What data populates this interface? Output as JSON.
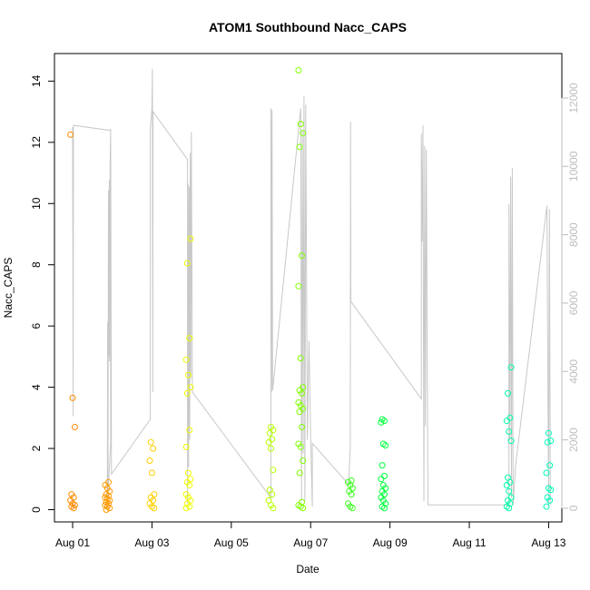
{
  "chart_data": {
    "type": "scatter",
    "title": "ATOM1 Southbound Nacc_CAPS",
    "xlabel": "Date",
    "ylabel": "Nacc_CAPS",
    "x_ticks": [
      "Aug 01",
      "Aug 03",
      "Aug 05",
      "Aug 07",
      "Aug 09",
      "Aug 11",
      "Aug 13"
    ],
    "xlim": [
      "2016-07-31T13:00",
      "2016-08-13T08:00"
    ],
    "ylim": [
      -0.4,
      14.9
    ],
    "y_ticks": [
      0,
      2,
      4,
      6,
      8,
      10,
      12,
      14
    ],
    "y2lim": [
      -400,
      13300
    ],
    "y2_ticks": [
      0,
      2000,
      4000,
      6000,
      8000,
      10000,
      12000
    ],
    "grid": false,
    "legend": "none",
    "colors": {
      "line": "#c8c8c8",
      "right_axis": "#bdbdbd",
      "ramp": [
        "#FF8C00",
        "#FFA500",
        "#FFFF00",
        "#ADFF2F",
        "#00FF00",
        "#00FF7F",
        "#00FFCC"
      ]
    },
    "series": [
      {
        "role": "points",
        "clusters": [
          {
            "x": "2016-08-01T00:00",
            "color": "#FF8C00",
            "values": [
              12.25,
              3.65,
              2.7,
              0.5,
              0.4,
              0.3,
              0.2,
              0.15,
              0.1,
              0.05
            ]
          },
          {
            "x": "2016-08-01T21:00",
            "color": "#FF9A00",
            "values": [
              0.9,
              0.8,
              0.7,
              0.6,
              0.5,
              0.45,
              0.4,
              0.35,
              0.3,
              0.25,
              0.2,
              0.15,
              0.1,
              0.05,
              0.0
            ]
          },
          {
            "x": "2016-08-03T00:00",
            "color": "#FFD000",
            "values": [
              2.2,
              2.0,
              1.6,
              1.2,
              0.5,
              0.4,
              0.3,
              0.2,
              0.1,
              0.05
            ]
          },
          {
            "x": "2016-08-03T22:00",
            "color": "#F0FF00",
            "values": [
              8.85,
              8.05,
              5.6,
              4.9,
              4.4,
              4.0,
              3.8,
              2.6,
              2.05,
              1.2,
              1.0,
              0.9,
              0.8,
              0.5,
              0.4,
              0.3,
              0.2,
              0.1,
              0.05
            ]
          },
          {
            "x": "2016-08-06T00:00",
            "color": "#B8FF00",
            "values": [
              2.7,
              2.6,
              2.5,
              2.3,
              2.2,
              2.0,
              1.3,
              0.65,
              0.5,
              0.3,
              0.15,
              0.05
            ]
          },
          {
            "x": "2016-08-06T18:00",
            "color": "#80FF00",
            "values": [
              14.35,
              12.6,
              12.3,
              11.85,
              8.3,
              7.3,
              4.95,
              4.0,
              3.9,
              3.8,
              3.5,
              3.4,
              3.3,
              3.2,
              2.7,
              2.15,
              2.05,
              1.6,
              1.2,
              0.25,
              0.15,
              0.1,
              0.05
            ]
          },
          {
            "x": "2016-08-08T00:00",
            "color": "#3CFF1E",
            "values": [
              0.95,
              0.9,
              0.8,
              0.7,
              0.6,
              0.5,
              0.2,
              0.1,
              0.05
            ]
          },
          {
            "x": "2016-08-08T20:00",
            "color": "#00FF3C",
            "values": [
              2.95,
              2.9,
              2.85,
              2.15,
              2.1,
              1.45,
              1.1,
              1.0,
              0.8,
              0.7,
              0.6,
              0.5,
              0.4,
              0.3,
              0.2,
              0.1,
              0.05
            ]
          },
          {
            "x": "2016-08-12T00:00",
            "color": "#00FFAA",
            "values": [
              4.65,
              3.8,
              3.0,
              2.9,
              2.55,
              2.25,
              1.05,
              0.9,
              0.8,
              0.6,
              0.4,
              0.3,
              0.2,
              0.1,
              0.05
            ]
          },
          {
            "x": "2016-08-13T00:00",
            "color": "#00FFBB",
            "values": [
              2.5,
              2.25,
              2.2,
              1.45,
              1.2,
              0.7,
              0.65,
              0.4,
              0.3,
              0.1
            ]
          }
        ]
      },
      {
        "role": "line",
        "axis": "right",
        "points": [
          [
            "2016-08-01T00:00",
            11150
          ],
          [
            "2016-08-01T00:10",
            6950
          ],
          [
            "2016-08-01T00:20",
            2700
          ],
          [
            "2016-08-01T00:30",
            11200
          ],
          [
            "2016-08-01T23:00",
            11050
          ],
          [
            "2016-08-01T23:00",
            1900
          ],
          [
            "2016-08-01T21:00",
            100
          ],
          [
            "2016-08-01T21:10",
            5450
          ],
          [
            "2016-08-01T21:20",
            200
          ],
          [
            "2016-08-01T21:40",
            9300
          ],
          [
            "2016-08-01T22:00",
            4450
          ],
          [
            "2016-08-01T22:10",
            9600
          ],
          [
            "2016-08-01T22:20",
            4300
          ],
          [
            "2016-08-01T22:40",
            10050
          ],
          [
            "2016-08-01T23:00",
            11100
          ],
          [
            "2016-08-01T23:30",
            1000
          ],
          [
            "2016-08-02T23:00",
            2600
          ],
          [
            "2016-08-02T23:00",
            11100
          ],
          [
            "2016-08-03T00:00",
            11700
          ],
          [
            "2016-08-03T00:15",
            12850
          ],
          [
            "2016-08-03T00:30",
            3400
          ],
          [
            "2016-08-03T00:40",
            11600
          ],
          [
            "2016-08-03T21:30",
            10200
          ],
          [
            "2016-08-03T21:30",
            150
          ],
          [
            "2016-08-03T21:50",
            9500
          ],
          [
            "2016-08-03T22:10",
            1200
          ],
          [
            "2016-08-03T22:30",
            9400
          ],
          [
            "2016-08-03T22:50",
            2000
          ],
          [
            "2016-08-03T23:10",
            10400
          ],
          [
            "2016-08-03T23:30",
            3800
          ],
          [
            "2016-08-03T23:50",
            11000
          ],
          [
            "2016-08-04T00:30",
            3400
          ],
          [
            "2016-08-06T00:00",
            300
          ],
          [
            "2016-08-06T00:00",
            11700
          ],
          [
            "2016-08-06T00:20",
            3400
          ],
          [
            "2016-08-06T00:40",
            11650
          ],
          [
            "2016-08-06T01:00",
            3450
          ],
          [
            "2016-08-06T18:00",
            11700
          ],
          [
            "2016-08-06T18:30",
            200
          ],
          [
            "2016-08-06T19:00",
            11050
          ],
          [
            "2016-08-06T19:30",
            1600
          ],
          [
            "2016-08-06T20:00",
            12050
          ],
          [
            "2016-08-06T20:30",
            200
          ],
          [
            "2016-08-06T21:00",
            11800
          ],
          [
            "2016-08-06T22:00",
            2000
          ],
          [
            "2016-08-06T23:00",
            4900
          ],
          [
            "2016-08-07T00:00",
            2100
          ],
          [
            "2016-08-07T01:00",
            50
          ],
          [
            "2016-08-07T01:00",
            1900
          ],
          [
            "2016-08-07T23:00",
            700
          ],
          [
            "2016-08-08T00:00",
            1800
          ],
          [
            "2016-08-08T00:10",
            11300
          ],
          [
            "2016-08-08T00:20",
            6050
          ],
          [
            "2016-08-09T19:00",
            3200
          ],
          [
            "2016-08-09T19:00",
            10950
          ],
          [
            "2016-08-09T19:30",
            7800
          ],
          [
            "2016-08-09T20:00",
            11200
          ],
          [
            "2016-08-09T20:30",
            200
          ],
          [
            "2016-08-09T21:00",
            10600
          ],
          [
            "2016-08-09T21:30",
            2400
          ],
          [
            "2016-08-09T22:00",
            10500
          ],
          [
            "2016-08-09T23:00",
            100
          ],
          [
            "2016-08-12T00:00",
            100
          ],
          [
            "2016-08-12T00:00",
            8900
          ],
          [
            "2016-08-12T00:30",
            2000
          ],
          [
            "2016-08-12T01:00",
            9700
          ],
          [
            "2016-08-12T01:30",
            300
          ],
          [
            "2016-08-12T02:00",
            9950
          ],
          [
            "2016-08-12T02:30",
            100
          ],
          [
            "2016-08-12T04:00",
            1250
          ],
          [
            "2016-08-12T23:00",
            8850
          ],
          [
            "2016-08-13T00:00",
            50
          ],
          [
            "2016-08-13T00:30",
            8750
          ],
          [
            "2016-08-13T01:00",
            100
          ]
        ]
      }
    ]
  }
}
